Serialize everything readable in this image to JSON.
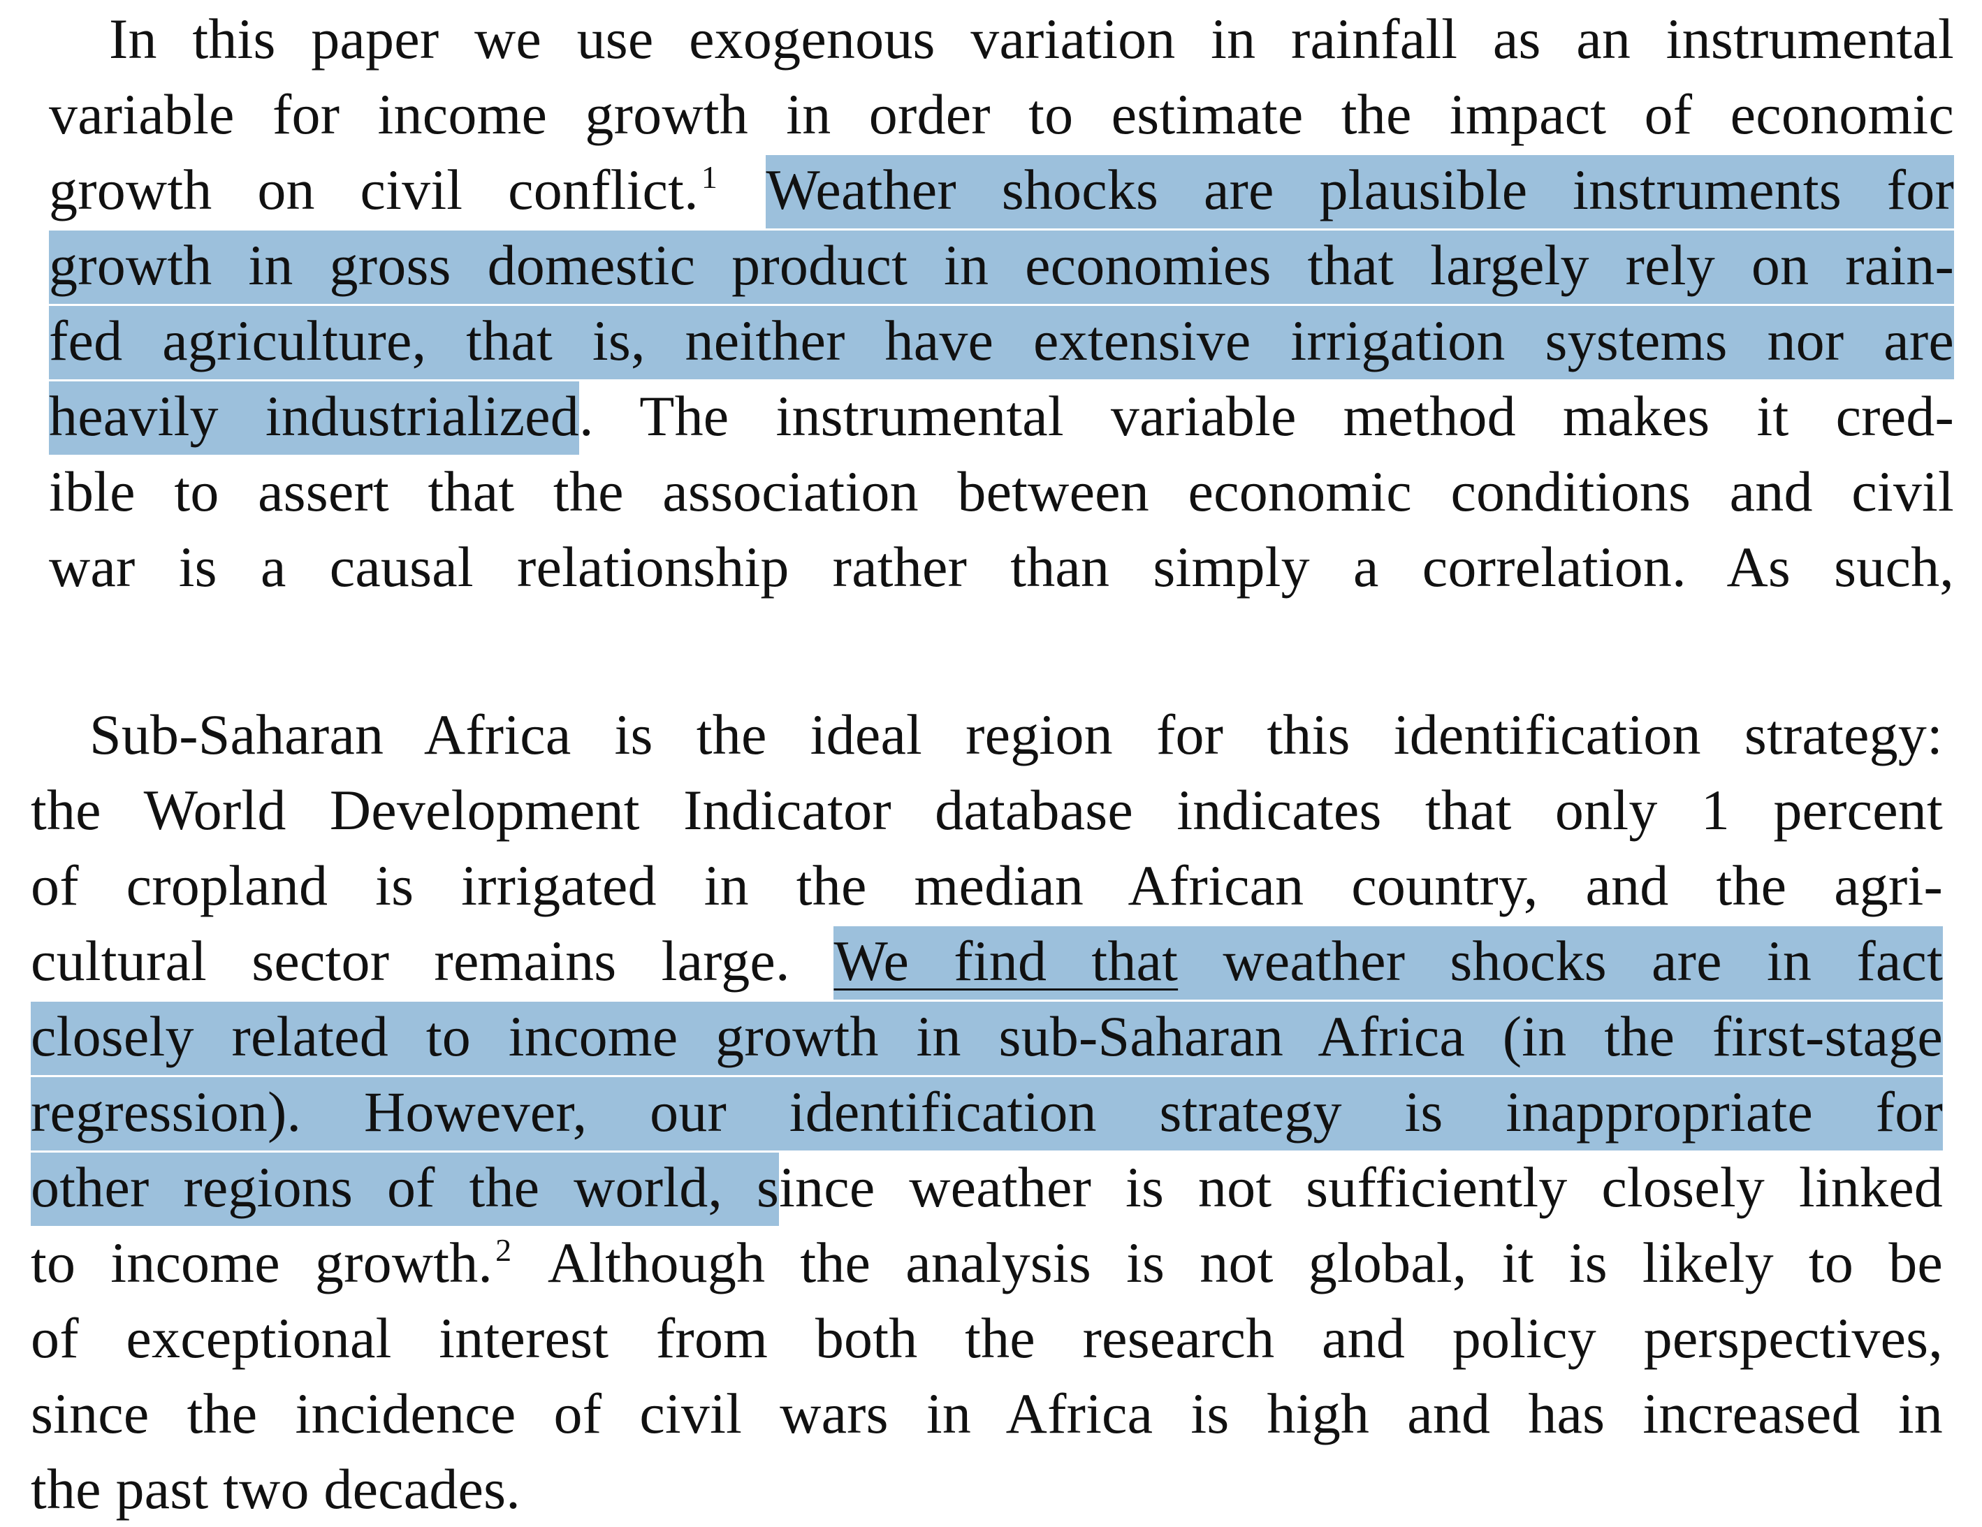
{
  "paragraph_1": {
    "lines": [
      "In this paper we use exogenous variation in rainfall as an instrumental",
      "variable for income growth in order to estimate the impact of economic",
      "growth on civil conflict.",
      "Weather shocks are plausible instruments for",
      "growth in gross domestic product in economies that largely rely on rain-",
      "fed agriculture, that is, neither have extensive irrigation systems nor are",
      "heavily industrialized",
      ". The instrumental variable method makes it cred-",
      "ible to assert that the association between economic conditions and civil",
      "war is a causal relationship rather than simply a correlation. As such,"
    ],
    "footnote_1": "1"
  },
  "paragraph_2": {
    "lines": [
      "Sub-Saharan Africa is the ideal region for this identification strategy:",
      "the World Development Indicator database indicates that only 1 percent",
      "of cropland is irrigated in the median African country, and the agri-",
      "cultural sector remains large. ",
      "We find that",
      " weather shocks are in fact",
      "closely related to income growth in sub-Saharan Africa (in the first-stage",
      "regression). However, our identification strategy is inappropriate for",
      "other regions of the world, s",
      "ince weather is not sufficiently closely linked",
      "to income growth.",
      " Although the analysis is not global, it is likely to be",
      "of exceptional interest from both the research and policy perspectives,",
      "since the incidence of civil wars in Africa is high and has increased in",
      "the past two decades."
    ],
    "footnote_2": "2"
  },
  "colors": {
    "highlight": "#9cc0dc",
    "text": "#111111",
    "background": "#ffffff"
  }
}
